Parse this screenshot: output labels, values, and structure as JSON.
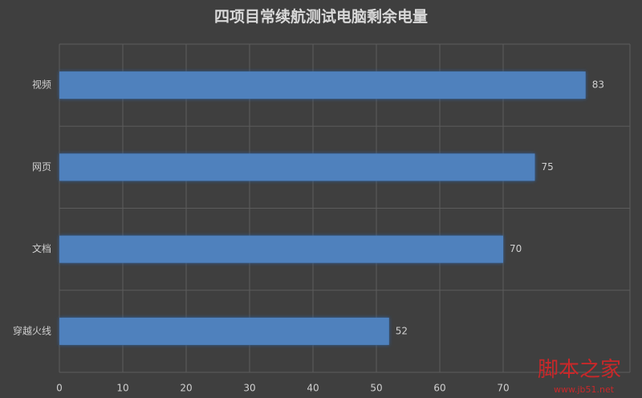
{
  "chart_data": {
    "type": "bar",
    "orientation": "horizontal",
    "title": "四项目常续航测试电脑剩余电量",
    "categories": [
      "视频",
      "网页",
      "文档",
      "穿越火线"
    ],
    "values": [
      83,
      75,
      70,
      52
    ],
    "color": "#4f81bd",
    "xlim": [
      0,
      90
    ],
    "xticks": [
      0,
      10,
      20,
      30,
      40,
      50,
      60,
      70
    ],
    "grid": true,
    "watermark": {
      "title": "脚本之家",
      "url": "www.jb51.net"
    }
  }
}
